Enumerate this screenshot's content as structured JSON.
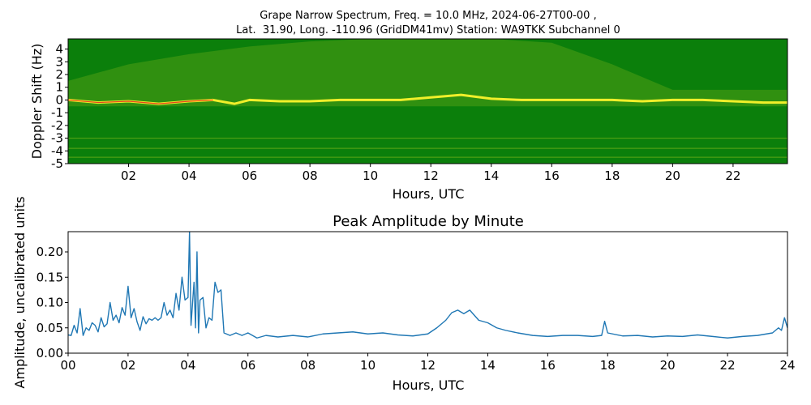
{
  "figure": {
    "title_line1": "Grape Narrow Spectrum, Freq. = 10.0 MHz, 2024-06-27T00-00 ,",
    "title_line2": "Lat.  31.90, Long. -110.96 (GridDM41mv) Station: WA9TKK Subchannel 0"
  },
  "colors": {
    "spectrum_bg": "#0b7f0b",
    "trace": "#1f77b4",
    "signal_yellow": "#f0ef2a",
    "signal_red": "#e31a1c"
  },
  "chart_data": [
    {
      "type": "heatmap",
      "title": "",
      "xlabel": "Hours, UTC",
      "ylabel": "Doppler Shift (Hz)",
      "xlim": [
        0,
        23.8
      ],
      "ylim": [
        -5,
        4.8
      ],
      "xticks": [
        "02",
        "04",
        "06",
        "08",
        "10",
        "12",
        "14",
        "16",
        "18",
        "20",
        "22"
      ],
      "xtick_values": [
        2,
        4,
        6,
        8,
        10,
        12,
        14,
        16,
        18,
        20,
        22
      ],
      "yticks": [
        "4",
        "3",
        "2",
        "1",
        "0",
        "-1",
        "-2",
        "-3",
        "-4",
        "-5"
      ],
      "ytick_values": [
        4,
        3,
        2,
        1,
        0,
        -1,
        -2,
        -3,
        -4,
        -5
      ],
      "main_trace_hz": {
        "x": [
          0,
          1,
          2,
          3,
          4,
          4.8,
          5.5,
          6,
          7,
          8,
          9,
          10,
          11,
          12,
          13,
          14,
          15,
          16,
          17,
          18,
          19,
          20,
          21,
          22,
          23,
          23.8
        ],
        "y": [
          0,
          -0.2,
          -0.1,
          -0.3,
          -0.1,
          0,
          -0.3,
          0,
          -0.1,
          -0.1,
          0,
          0,
          0,
          0.2,
          0.4,
          0.1,
          0,
          0,
          0,
          0,
          -0.1,
          0,
          0,
          -0.1,
          -0.2,
          -0.2
        ]
      },
      "spread_envelope_hz": {
        "x": [
          0,
          2,
          4,
          6,
          8,
          10,
          12,
          14,
          16,
          18,
          20,
          22,
          23.8
        ],
        "y": [
          1.5,
          2.8,
          3.6,
          4.2,
          4.6,
          4.8,
          4.8,
          4.8,
          4.5,
          2.8,
          0.8,
          0.8,
          0.8
        ]
      }
    },
    {
      "type": "line",
      "title": "Peak Amplitude by Minute",
      "xlabel": "Hours, UTC",
      "ylabel": "Amplitude, uncalibrated units",
      "xlim": [
        0,
        24
      ],
      "ylim": [
        0,
        0.24
      ],
      "xticks": [
        "00",
        "02",
        "04",
        "06",
        "08",
        "10",
        "12",
        "14",
        "16",
        "18",
        "20",
        "22",
        "24"
      ],
      "xtick_values": [
        0,
        2,
        4,
        6,
        8,
        10,
        12,
        14,
        16,
        18,
        20,
        22,
        24
      ],
      "yticks": [
        "0.00",
        "0.05",
        "0.10",
        "0.15",
        "0.20"
      ],
      "ytick_values": [
        0,
        0.05,
        0.1,
        0.15,
        0.2
      ],
      "series": [
        {
          "x": [
            0,
            0.1,
            0.2,
            0.3,
            0.4,
            0.5,
            0.6,
            0.7,
            0.8,
            0.9,
            1.0,
            1.1,
            1.2,
            1.3,
            1.4,
            1.5,
            1.6,
            1.7,
            1.8,
            1.9,
            2.0,
            2.1,
            2.2,
            2.3,
            2.4,
            2.5,
            2.6,
            2.7,
            2.8,
            2.9,
            3.0,
            3.1,
            3.2,
            3.3,
            3.4,
            3.5,
            3.6,
            3.7,
            3.8,
            3.9,
            4.0,
            4.05,
            4.1,
            4.2,
            4.25,
            4.3,
            4.35,
            4.4,
            4.5,
            4.6,
            4.7,
            4.8,
            4.9,
            5.0,
            5.1,
            5.2,
            5.4,
            5.6,
            5.8,
            6.0,
            6.3,
            6.6,
            7.0,
            7.5,
            8.0,
            8.5,
            9.0,
            9.5,
            10.0,
            10.5,
            11.0,
            11.5,
            12.0,
            12.3,
            12.6,
            12.8,
            13.0,
            13.2,
            13.4,
            13.7,
            14.0,
            14.3,
            14.6,
            15.0,
            15.5,
            16.0,
            16.5,
            17.0,
            17.5,
            17.8,
            17.9,
            18.0,
            18.5,
            19.0,
            19.5,
            20.0,
            20.5,
            21.0,
            21.5,
            22.0,
            22.5,
            23.0,
            23.5,
            23.7,
            23.8,
            23.9,
            24.0
          ],
          "y": [
            0.036,
            0.035,
            0.055,
            0.04,
            0.088,
            0.035,
            0.05,
            0.045,
            0.06,
            0.055,
            0.042,
            0.07,
            0.052,
            0.058,
            0.1,
            0.065,
            0.075,
            0.06,
            0.09,
            0.075,
            0.132,
            0.07,
            0.088,
            0.062,
            0.045,
            0.072,
            0.058,
            0.068,
            0.065,
            0.07,
            0.065,
            0.07,
            0.1,
            0.075,
            0.085,
            0.07,
            0.118,
            0.085,
            0.15,
            0.105,
            0.11,
            0.24,
            0.055,
            0.14,
            0.05,
            0.2,
            0.04,
            0.105,
            0.11,
            0.05,
            0.07,
            0.065,
            0.14,
            0.12,
            0.125,
            0.04,
            0.035,
            0.04,
            0.035,
            0.04,
            0.03,
            0.035,
            0.032,
            0.035,
            0.032,
            0.038,
            0.04,
            0.042,
            0.038,
            0.04,
            0.036,
            0.034,
            0.038,
            0.05,
            0.065,
            0.08,
            0.085,
            0.078,
            0.085,
            0.065,
            0.06,
            0.05,
            0.045,
            0.04,
            0.035,
            0.033,
            0.035,
            0.035,
            0.033,
            0.035,
            0.063,
            0.04,
            0.034,
            0.035,
            0.032,
            0.034,
            0.033,
            0.036,
            0.033,
            0.03,
            0.033,
            0.035,
            0.04,
            0.05,
            0.045,
            0.07,
            0.05
          ]
        }
      ]
    }
  ]
}
